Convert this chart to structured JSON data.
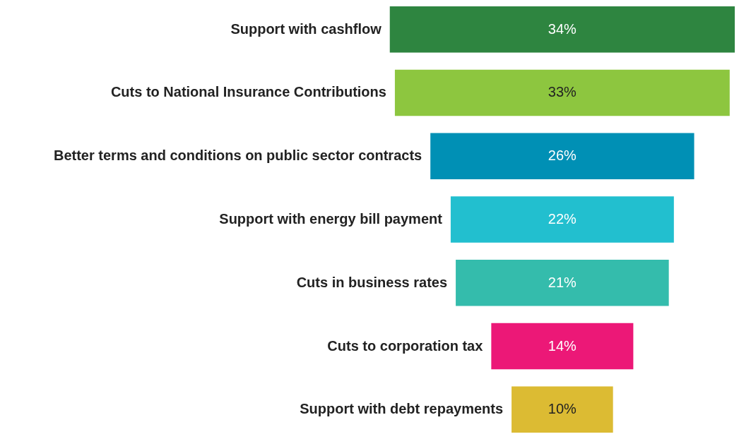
{
  "chart_data": {
    "type": "other",
    "categories": [
      "Support with cashflow",
      "Cuts to National Insurance Contributions",
      "Better terms and conditions on public sector contracts",
      "Support with energy bill payment",
      "Cuts in business rates",
      "Cuts to corporation tax",
      "Support with debt repayments"
    ],
    "values": [
      34,
      33,
      26,
      22,
      21,
      14,
      10
    ],
    "value_labels": [
      "34%",
      "33%",
      "26%",
      "22%",
      "21%",
      "14%",
      "10%"
    ],
    "colors": [
      "#2e8540",
      "#8dc63f",
      "#0090b5",
      "#22bfcf",
      "#34bcac",
      "#ec1877",
      "#dcbb33"
    ]
  }
}
